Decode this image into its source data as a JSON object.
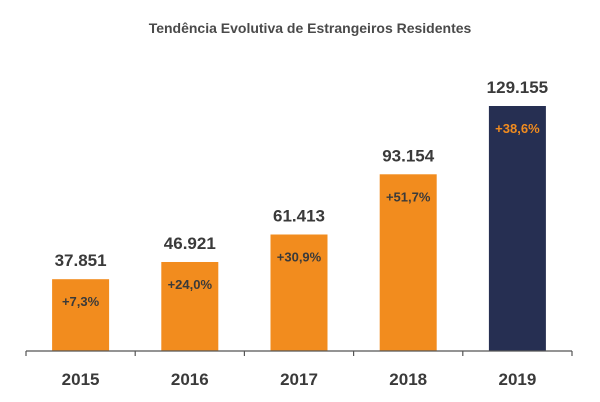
{
  "chart_data": {
    "type": "bar",
    "title": "Tendência Evolutiva de Estrangeiros Residentes",
    "xlabel": "",
    "ylabel": "",
    "categories": [
      "2015",
      "2016",
      "2017",
      "2018",
      "2019"
    ],
    "values": [
      37851,
      46921,
      61413,
      93154,
      129155
    ],
    "value_labels": [
      "37.851",
      "46.921",
      "61.413",
      "93.154",
      "129.155"
    ],
    "growth_labels": [
      "+7,3%",
      "+24,0%",
      "+30,9%",
      "+51,7%",
      "+38,6%"
    ],
    "ylim": [
      0,
      129155
    ],
    "grid": false,
    "legend": "none",
    "colors": {
      "bar_default": "#f28c1e",
      "bar_highlight": "#262f52",
      "pct_on_default": "#3a3a3a",
      "pct_on_highlight": "#f28c1e",
      "axis": "#555555"
    },
    "highlight_index": 4
  }
}
